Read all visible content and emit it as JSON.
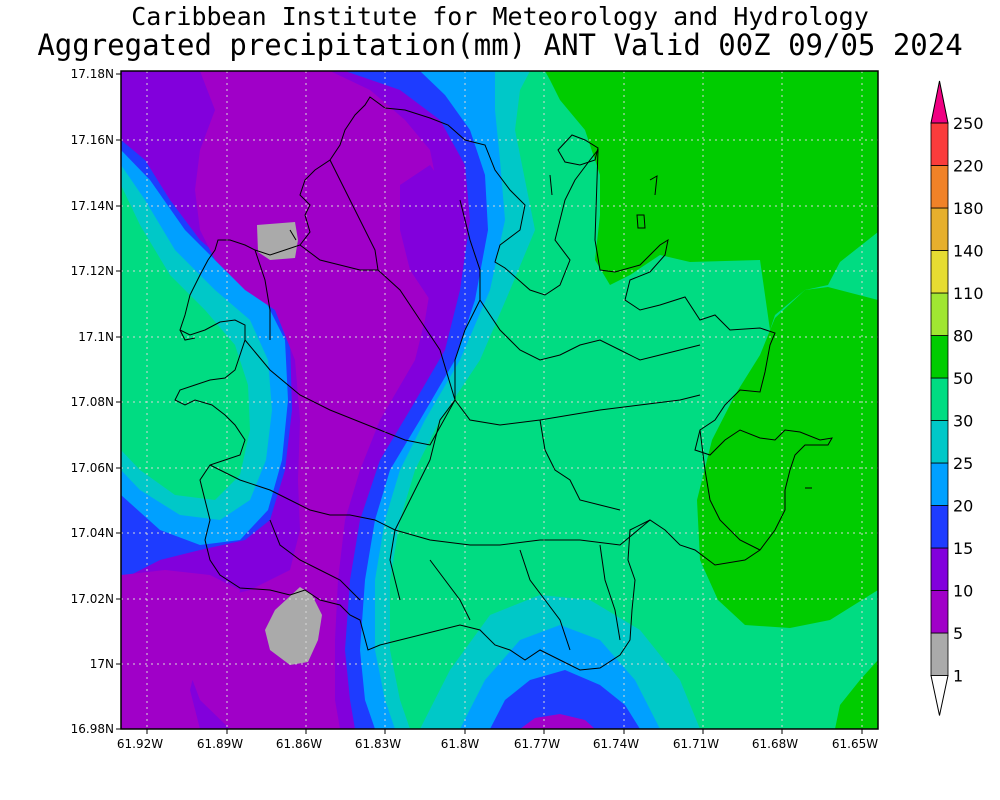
{
  "title_line1": "Caribbean Institute for Meteorology and Hydrology",
  "title_line2": "Aggregated precipitation(mm) ANT Valid 00Z 09/05 2024",
  "map": {
    "x_ticks": [
      "61.92W",
      "61.89W",
      "61.86W",
      "61.83W",
      "61.8W",
      "61.77W",
      "61.74W",
      "61.71W",
      "61.68W",
      "61.65W"
    ],
    "y_ticks": [
      "17.18N",
      "17.16N",
      "17.14N",
      "17.12N",
      "17.1N",
      "17.08N",
      "17.06N",
      "17.04N",
      "17.02N",
      "17N",
      "16.98N"
    ],
    "grid": true
  },
  "colorbar": {
    "levels": [
      "1",
      "5",
      "10",
      "15",
      "20",
      "25",
      "30",
      "50",
      "80",
      "110",
      "140",
      "180",
      "220",
      "250"
    ],
    "colors": [
      "#aaaaaa",
      "#a000c8",
      "#8200dc",
      "#1e3cff",
      "#00a0ff",
      "#00c8c8",
      "#00dc82",
      "#00cc00",
      "#a0e632",
      "#e6dc32",
      "#e6af2d",
      "#f08228",
      "#fa3c3c",
      "#f00082"
    ],
    "under_color": "#ffffff",
    "over_color": "#f00082"
  }
}
